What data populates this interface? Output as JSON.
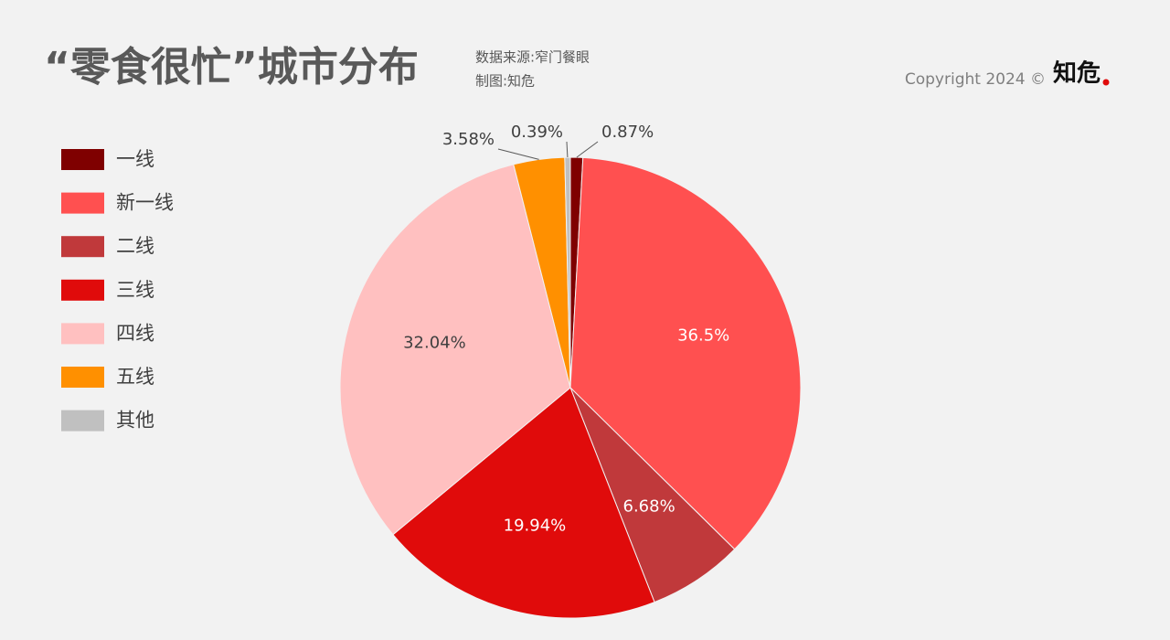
{
  "chart_data": {
    "type": "pie",
    "title": "“零食很忙”城市分布",
    "source": "数据来源:窄门餐眼",
    "credit": "制图:知危",
    "copyright": "Copyright 2024 ©",
    "brand": "知危",
    "categories": [
      "一线",
      "新一线",
      "二线",
      "三线",
      "四线",
      "五线",
      "其他"
    ],
    "values": [
      0.87,
      36.5,
      6.68,
      19.94,
      32.04,
      3.58,
      0.39
    ],
    "value_labels": [
      "0.87%",
      "36.5%",
      "6.68%",
      "19.94%",
      "32.04%",
      "3.58%",
      "0.39%"
    ],
    "colors": [
      "#7f0000",
      "#ff5050",
      "#c0393b",
      "#e00b0b",
      "#ffc0c0",
      "#ff9000",
      "#c0c0c0"
    ],
    "legend": "left"
  }
}
